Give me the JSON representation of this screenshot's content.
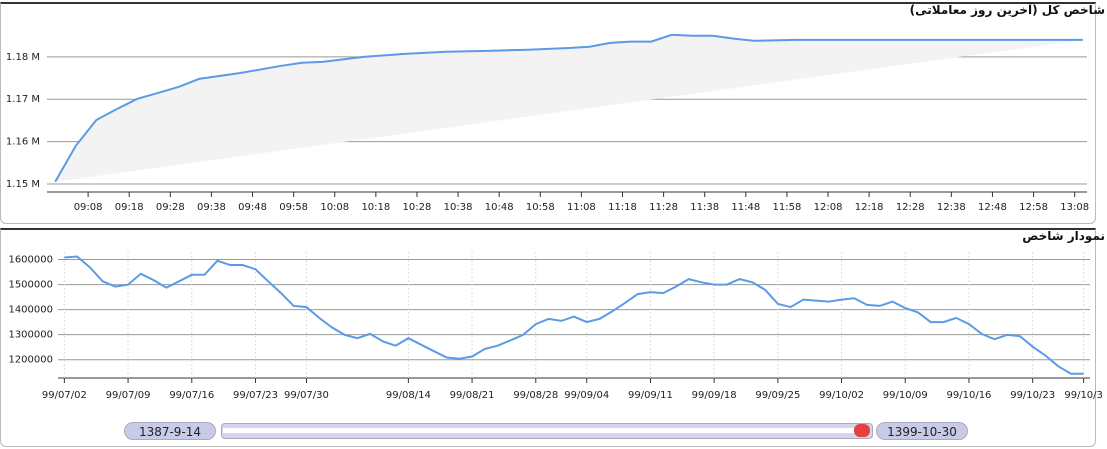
{
  "chart_data": [
    {
      "type": "line",
      "title": "شاخص کل (آخرین روز معاملاتی)",
      "x": [
        "09:00",
        "09:05",
        "09:10",
        "09:15",
        "09:20",
        "09:25",
        "09:30",
        "09:35",
        "09:45",
        "09:55",
        "10:00",
        "10:05",
        "10:15",
        "10:25",
        "10:35",
        "10:45",
        "10:55",
        "11:05",
        "11:10",
        "11:15",
        "11:20",
        "11:25",
        "11:30",
        "11:35",
        "11:40",
        "11:45",
        "11:50",
        "12:00",
        "12:25",
        "13:10"
      ],
      "values": [
        1150500,
        1159000,
        1165100,
        1167700,
        1170100,
        1171500,
        1172900,
        1174800,
        1176200,
        1177900,
        1178600,
        1178800,
        1180000,
        1180700,
        1181200,
        1181400,
        1181700,
        1182100,
        1182400,
        1183300,
        1183600,
        1183600,
        1185200,
        1185000,
        1185000,
        1184300,
        1183800,
        1184000,
        1184000,
        1184000
      ],
      "xlim": [
        "08:58",
        "13:11"
      ],
      "xticks": [
        "09:08",
        "09:18",
        "09:28",
        "09:38",
        "09:48",
        "09:58",
        "10:08",
        "10:18",
        "10:28",
        "10:38",
        "10:48",
        "10:58",
        "11:08",
        "11:18",
        "11:28",
        "11:38",
        "11:48",
        "11:58",
        "12:08",
        "12:18",
        "12:28",
        "12:38",
        "12:48",
        "12:58",
        "13:08"
      ],
      "ylim": [
        1148100,
        1188700
      ],
      "yticks": [
        {
          "value": 1150000,
          "label": "1.15 M"
        },
        {
          "value": 1160000,
          "label": "1.16 M"
        },
        {
          "value": 1170000,
          "label": "1.17 M"
        },
        {
          "value": 1180000,
          "label": "1.18 M"
        }
      ],
      "color": "#5b9be6",
      "fill": "#f3f3f3",
      "grid": true
    },
    {
      "type": "line",
      "title": "نمودار شاخص",
      "categories": [
        "99/07/02",
        null,
        null,
        null,
        null,
        "99/07/09",
        null,
        null,
        null,
        null,
        "99/07/16",
        null,
        null,
        null,
        null,
        "99/07/23",
        null,
        null,
        null,
        "99/07/30",
        null,
        null,
        null,
        null,
        null,
        null,
        null,
        "99/08/14",
        null,
        null,
        null,
        null,
        "99/08/21",
        null,
        null,
        null,
        null,
        "99/08/28",
        null,
        null,
        null,
        "99/09/04",
        null,
        null,
        null,
        null,
        "99/09/11",
        null,
        null,
        null,
        null,
        "99/09/18",
        null,
        null,
        null,
        null,
        "99/09/25",
        null,
        null,
        null,
        null,
        "99/10/02",
        null,
        null,
        null,
        null,
        "99/10/09",
        null,
        null,
        null,
        null,
        "99/10/16",
        null,
        null,
        null,
        null,
        "99/10/23",
        null,
        null,
        null,
        "99/10/3"
      ],
      "values": [
        1608000,
        1612000,
        1569000,
        1513000,
        1492000,
        1500000,
        1543000,
        1518000,
        1488000,
        1513000,
        1539000,
        1539000,
        1595000,
        1578000,
        1578000,
        1561000,
        1513000,
        1466000,
        1415000,
        1410000,
        1367000,
        1329000,
        1299000,
        1286000,
        1303000,
        1273000,
        1256000,
        1286000,
        1260000,
        1234000,
        1209000,
        1204000,
        1213000,
        1243000,
        1256000,
        1277000,
        1299000,
        1342000,
        1363000,
        1355000,
        1372000,
        1350000,
        1363000,
        1393000,
        1427000,
        1462000,
        1470000,
        1466000,
        1492000,
        1522000,
        1509000,
        1500000,
        1500000,
        1522000,
        1509000,
        1479000,
        1423000,
        1410000,
        1440000,
        1436000,
        1432000,
        1440000,
        1445000,
        1419000,
        1415000,
        1432000,
        1406000,
        1389000,
        1350000,
        1350000,
        1367000,
        1342000,
        1303000,
        1282000,
        1299000,
        1294000,
        1252000,
        1217000,
        1174000,
        1144000,
        1144000
      ],
      "ylim": [
        1127000,
        1630000
      ],
      "yticks": [
        1200000,
        1300000,
        1400000,
        1500000,
        1600000
      ],
      "color": "#5b9be6",
      "grid": true
    }
  ],
  "navigator": {
    "start": "1387-9-14",
    "end": "1399-10-30"
  }
}
